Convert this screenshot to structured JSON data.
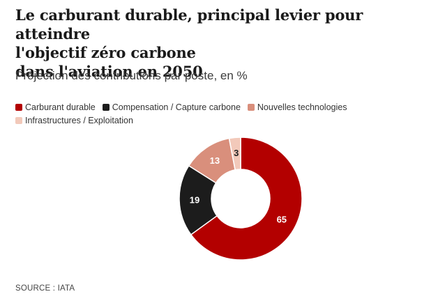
{
  "header": {
    "title": "Le carburant durable, principal levier pour atteindre\nl'objectif zéro carbone\ndans l'aviation en 2050",
    "subtitle": "Projection des contributions par poste, en %"
  },
  "footer": {
    "source": "SOURCE : IATA"
  },
  "chart_data": {
    "type": "pie",
    "donut": true,
    "title": "Le carburant durable, principal levier pour atteindre l'objectif zéro carbone dans l'aviation en 2050",
    "subtitle": "Projection des contributions par poste, en %",
    "legend_position": "top-left",
    "categories": [
      "Carburant durable",
      "Compensation / Capture carbone",
      "Nouvelles technologies",
      "Infrastructures / Exploitation"
    ],
    "values": [
      65,
      19,
      13,
      3
    ],
    "colors": [
      "#b30000",
      "#1c1c1c",
      "#d98f7c",
      "#f2c9ba"
    ],
    "label_colors": [
      "#ffffff",
      "#ffffff",
      "#ffffff",
      "#222222"
    ]
  }
}
